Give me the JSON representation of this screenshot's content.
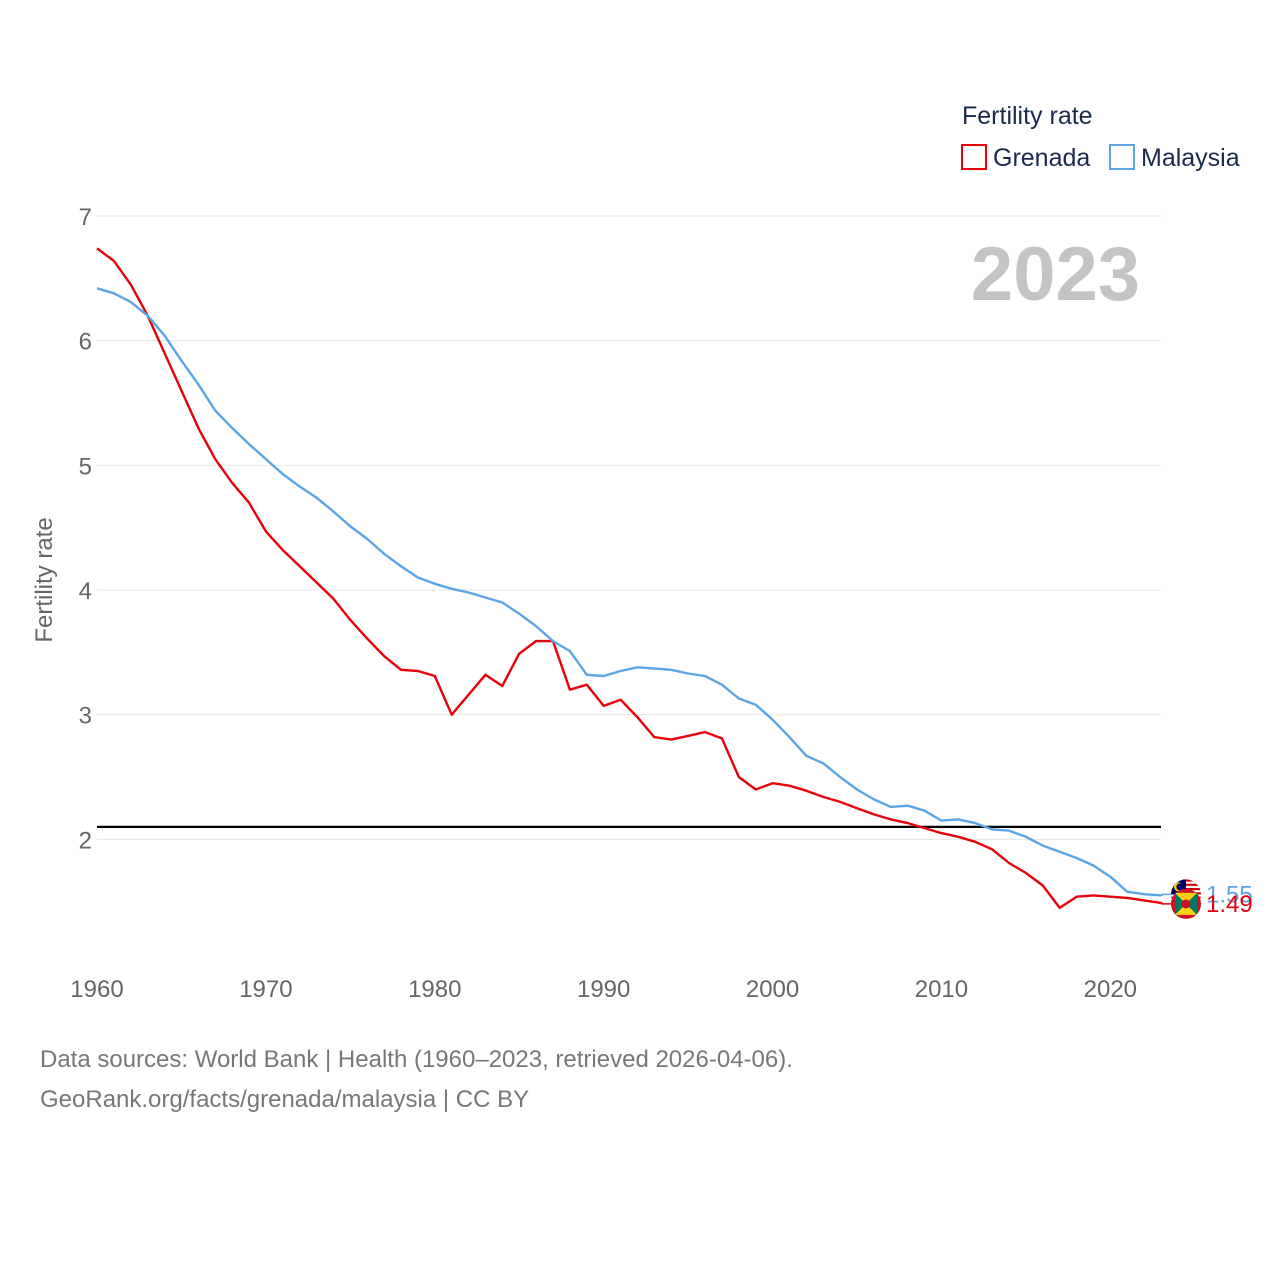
{
  "chart_data": {
    "type": "line",
    "ylabel": "Fertility rate",
    "xlabel": "",
    "xlim": [
      1960,
      2023
    ],
    "ylim": [
      1.0,
      7.0
    ],
    "y_ticks": [
      2,
      3,
      4,
      5,
      6,
      7
    ],
    "x_ticks": [
      1960,
      1970,
      1980,
      1990,
      2000,
      2010,
      2020
    ],
    "grid": true,
    "legend_title": "Fertility rate",
    "legend_position": "top-right",
    "year_overlay": "2023",
    "reference_line": {
      "y": 2.1
    },
    "colors": {
      "Grenada": "#e8000b",
      "Malaysia": "#5ba4e6"
    },
    "x": [
      1960,
      1961,
      1962,
      1963,
      1964,
      1965,
      1966,
      1967,
      1968,
      1969,
      1970,
      1971,
      1972,
      1973,
      1974,
      1975,
      1976,
      1977,
      1978,
      1979,
      1980,
      1981,
      1982,
      1983,
      1984,
      1985,
      1986,
      1987,
      1988,
      1989,
      1990,
      1991,
      1992,
      1993,
      1994,
      1995,
      1996,
      1997,
      1998,
      1999,
      2000,
      2001,
      2002,
      2003,
      2004,
      2005,
      2006,
      2007,
      2008,
      2009,
      2010,
      2011,
      2012,
      2013,
      2014,
      2015,
      2016,
      2017,
      2018,
      2019,
      2020,
      2021,
      2022,
      2023
    ],
    "series": [
      {
        "name": "Grenada",
        "values": [
          6.74,
          6.64,
          6.45,
          6.2,
          5.9,
          5.6,
          5.3,
          5.05,
          4.86,
          4.7,
          4.47,
          4.32,
          4.19,
          4.06,
          3.93,
          3.76,
          3.61,
          3.47,
          3.36,
          3.35,
          3.31,
          3.0,
          3.16,
          3.32,
          3.23,
          3.49,
          3.59,
          3.59,
          3.2,
          3.24,
          3.07,
          3.12,
          2.98,
          2.82,
          2.8,
          2.83,
          2.86,
          2.81,
          2.5,
          2.4,
          2.45,
          2.43,
          2.39,
          2.34,
          2.3,
          2.25,
          2.2,
          2.16,
          2.13,
          2.09,
          2.05,
          2.02,
          1.98,
          1.92,
          1.81,
          1.73,
          1.63,
          1.45,
          1.54,
          1.55,
          1.54,
          1.53,
          1.51,
          1.49
        ],
        "end_label": "1.49"
      },
      {
        "name": "Malaysia",
        "values": [
          6.42,
          6.38,
          6.31,
          6.2,
          6.04,
          5.84,
          5.65,
          5.44,
          5.3,
          5.17,
          5.05,
          4.93,
          4.83,
          4.74,
          4.63,
          4.51,
          4.41,
          4.29,
          4.19,
          4.1,
          4.05,
          4.01,
          3.98,
          3.94,
          3.9,
          3.81,
          3.71,
          3.59,
          3.51,
          3.32,
          3.31,
          3.35,
          3.38,
          3.37,
          3.36,
          3.33,
          3.31,
          3.24,
          3.13,
          3.08,
          2.96,
          2.82,
          2.67,
          2.61,
          2.5,
          2.4,
          2.32,
          2.26,
          2.27,
          2.23,
          2.15,
          2.16,
          2.13,
          2.08,
          2.07,
          2.02,
          1.95,
          1.9,
          1.85,
          1.79,
          1.7,
          1.58,
          1.56,
          1.55
        ],
        "end_label": "1.55"
      }
    ]
  },
  "source": {
    "line1": "Data sources: World Bank | Health (1960–2023, retrieved 2026-04-06).",
    "line2": "GeoRank.org/facts/grenada/malaysia | CC BY"
  }
}
